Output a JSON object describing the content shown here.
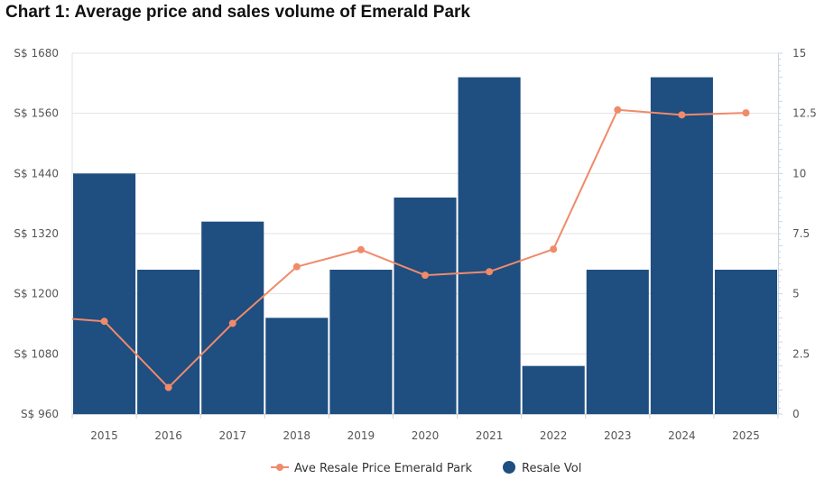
{
  "chart_data": {
    "type": "bar+line",
    "title": "Chart 1: Average price and sales volume of Emerald Park",
    "categories": [
      "2015",
      "2016",
      "2017",
      "2018",
      "2019",
      "2020",
      "2021",
      "2022",
      "2023",
      "2024",
      "2025"
    ],
    "series": [
      {
        "name": "Resale Vol",
        "type": "bar",
        "axis": "right",
        "color": "#1f4e80",
        "values": [
          10,
          6,
          8,
          4,
          6,
          9,
          14,
          2,
          6,
          14,
          6
        ]
      },
      {
        "name": "Ave Resale Price Emerald Park",
        "type": "line",
        "axis": "left",
        "color": "#f08a6b",
        "values": [
          1145,
          1013,
          1141,
          1254,
          1288,
          1237,
          1244,
          1289,
          1567,
          1557,
          1561
        ]
      }
    ],
    "left_axis": {
      "ylim": [
        960,
        1680
      ],
      "ticks": [
        "S$ 960",
        "S$ 1080",
        "S$ 1200",
        "S$ 1320",
        "S$ 1440",
        "S$ 1560",
        "S$ 1680"
      ],
      "tick_values": [
        960,
        1080,
        1200,
        1320,
        1440,
        1560,
        1680
      ]
    },
    "right_axis": {
      "ylim": [
        0,
        15
      ],
      "ticks": [
        "0",
        "2.5",
        "5",
        "7.5",
        "10",
        "12.5",
        "15"
      ],
      "tick_values": [
        0,
        2.5,
        5,
        7.5,
        10,
        12.5,
        15
      ]
    },
    "line_start_value": 1150,
    "grid": true,
    "legend_position": "bottom",
    "legend": [
      "Ave Resale Price Emerald Park",
      "Resale Vol"
    ]
  }
}
